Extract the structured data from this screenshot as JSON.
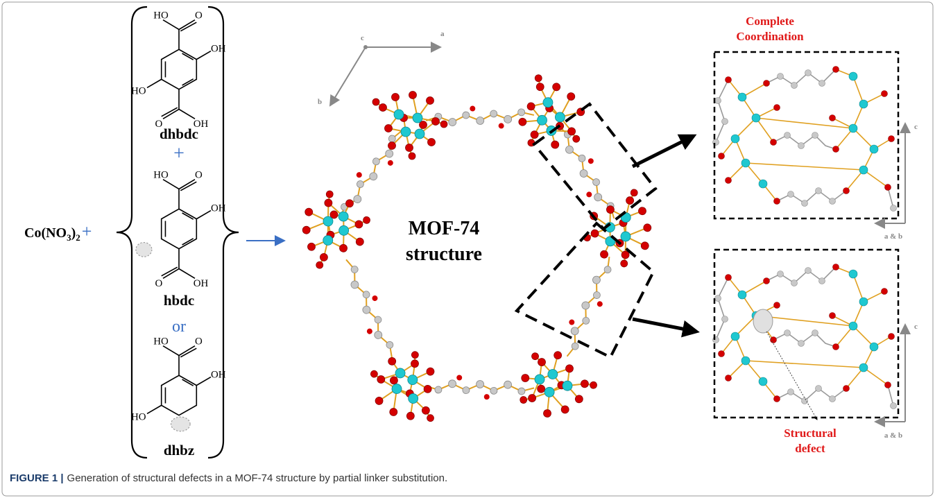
{
  "reactant": {
    "formula": [
      "Co(NO",
      "3",
      ")",
      "2"
    ],
    "plus": "+"
  },
  "linkers": [
    {
      "atoms": [
        "HO",
        "O",
        "OH",
        "HO",
        "O",
        "OH"
      ],
      "name": "dhbdc"
    },
    {
      "atoms": [
        "HO",
        "O",
        "OH",
        "O",
        "OH"
      ],
      "name": "hbdc"
    },
    {
      "atoms": [
        "HO",
        "O",
        "OH",
        "HO"
      ],
      "name": "dhbz"
    }
  ],
  "separators": [
    "+",
    "or"
  ],
  "structure": {
    "axes": [
      "c",
      "a",
      "b"
    ],
    "label": [
      "MOF-74",
      "structure"
    ]
  },
  "panels": [
    {
      "title": [
        "Complete",
        "Coordination"
      ],
      "axes": [
        "c",
        "a & b"
      ]
    },
    {
      "axes": [
        "c",
        "a & b"
      ],
      "annotation": [
        "Structural",
        "defect"
      ]
    }
  ],
  "caption": {
    "label": "FIGURE 1 |",
    "text": "Generation of structural defects in a MOF-74 structure by partial linker substitution."
  }
}
